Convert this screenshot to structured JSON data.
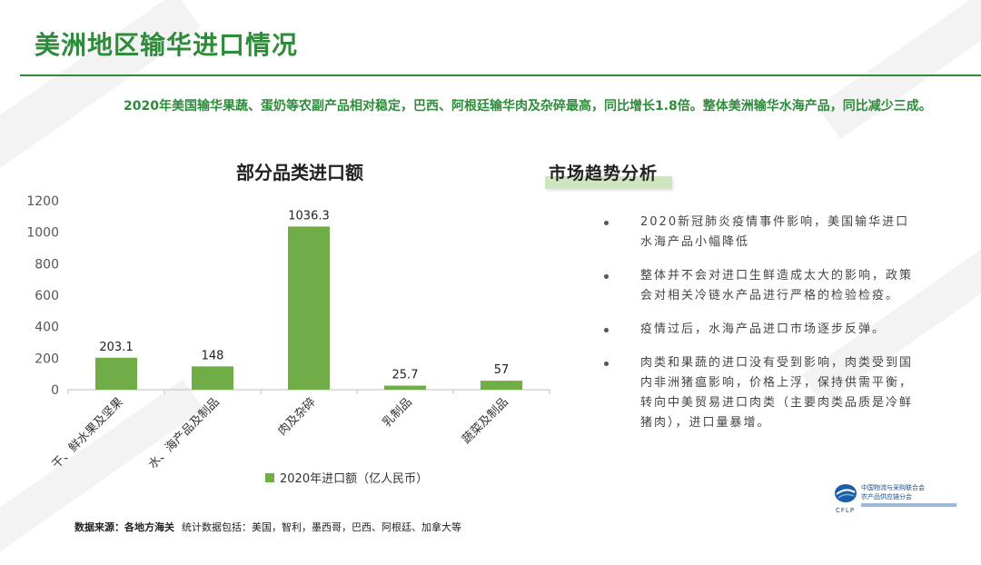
{
  "header": {
    "title": "美洲地区输华进口情况"
  },
  "summary": "2020年美国输华果蔬、蛋奶等农副产品相对稳定，巴西、阿根廷输华肉及杂碎最高，同比增长1.8倍。整体美洲输华水海产品，同比减少三成。",
  "chart_data": {
    "type": "bar",
    "title": "部分品类进口额",
    "categories": [
      "干、鲜水果及坚果",
      "水、海产品及制品",
      "肉及杂碎",
      "乳制品",
      "蔬菜及制品"
    ],
    "series": [
      {
        "name": "2020年进口额（亿人民币）",
        "values": [
          203.1,
          148,
          1036.3,
          25.7,
          57
        ]
      }
    ],
    "value_labels": [
      "203.1",
      "148",
      "1036.3",
      "25.7",
      "57"
    ],
    "yticks": [
      "0",
      "200",
      "400",
      "600",
      "800",
      "1000",
      "1200"
    ],
    "ylim": [
      0,
      1200
    ],
    "grid": false,
    "legend": "bottom",
    "color": "#70ad47"
  },
  "analysis": {
    "title": "市场趋势分析",
    "items": [
      "2020新冠肺炎疫情事件影响，美国输华进口水海产品小幅降低",
      "整体并不会对进口生鲜造成太大的影响，政策会对相关冷链水产品进行严格的检验检疫。",
      "疫情过后，水海产品进口市场逐步反弹。",
      "肉类和果蔬的进口没有受到影响，肉类受到国内非洲猪瘟影响，价格上浮，保持供需平衡，转向中美贸易进口肉类（主要肉类品质是冷鲜猪肉），进口量暴增。"
    ]
  },
  "footer": {
    "source_label": "数据来源：各地方海关",
    "source_text": "统计数据包括：美国，智利，墨西哥，巴西、阿根廷、加拿大等"
  },
  "logo": {
    "line1": "中国物流与采购联合会",
    "line2": "农产品供应链分会",
    "abbr": "CFLP"
  }
}
